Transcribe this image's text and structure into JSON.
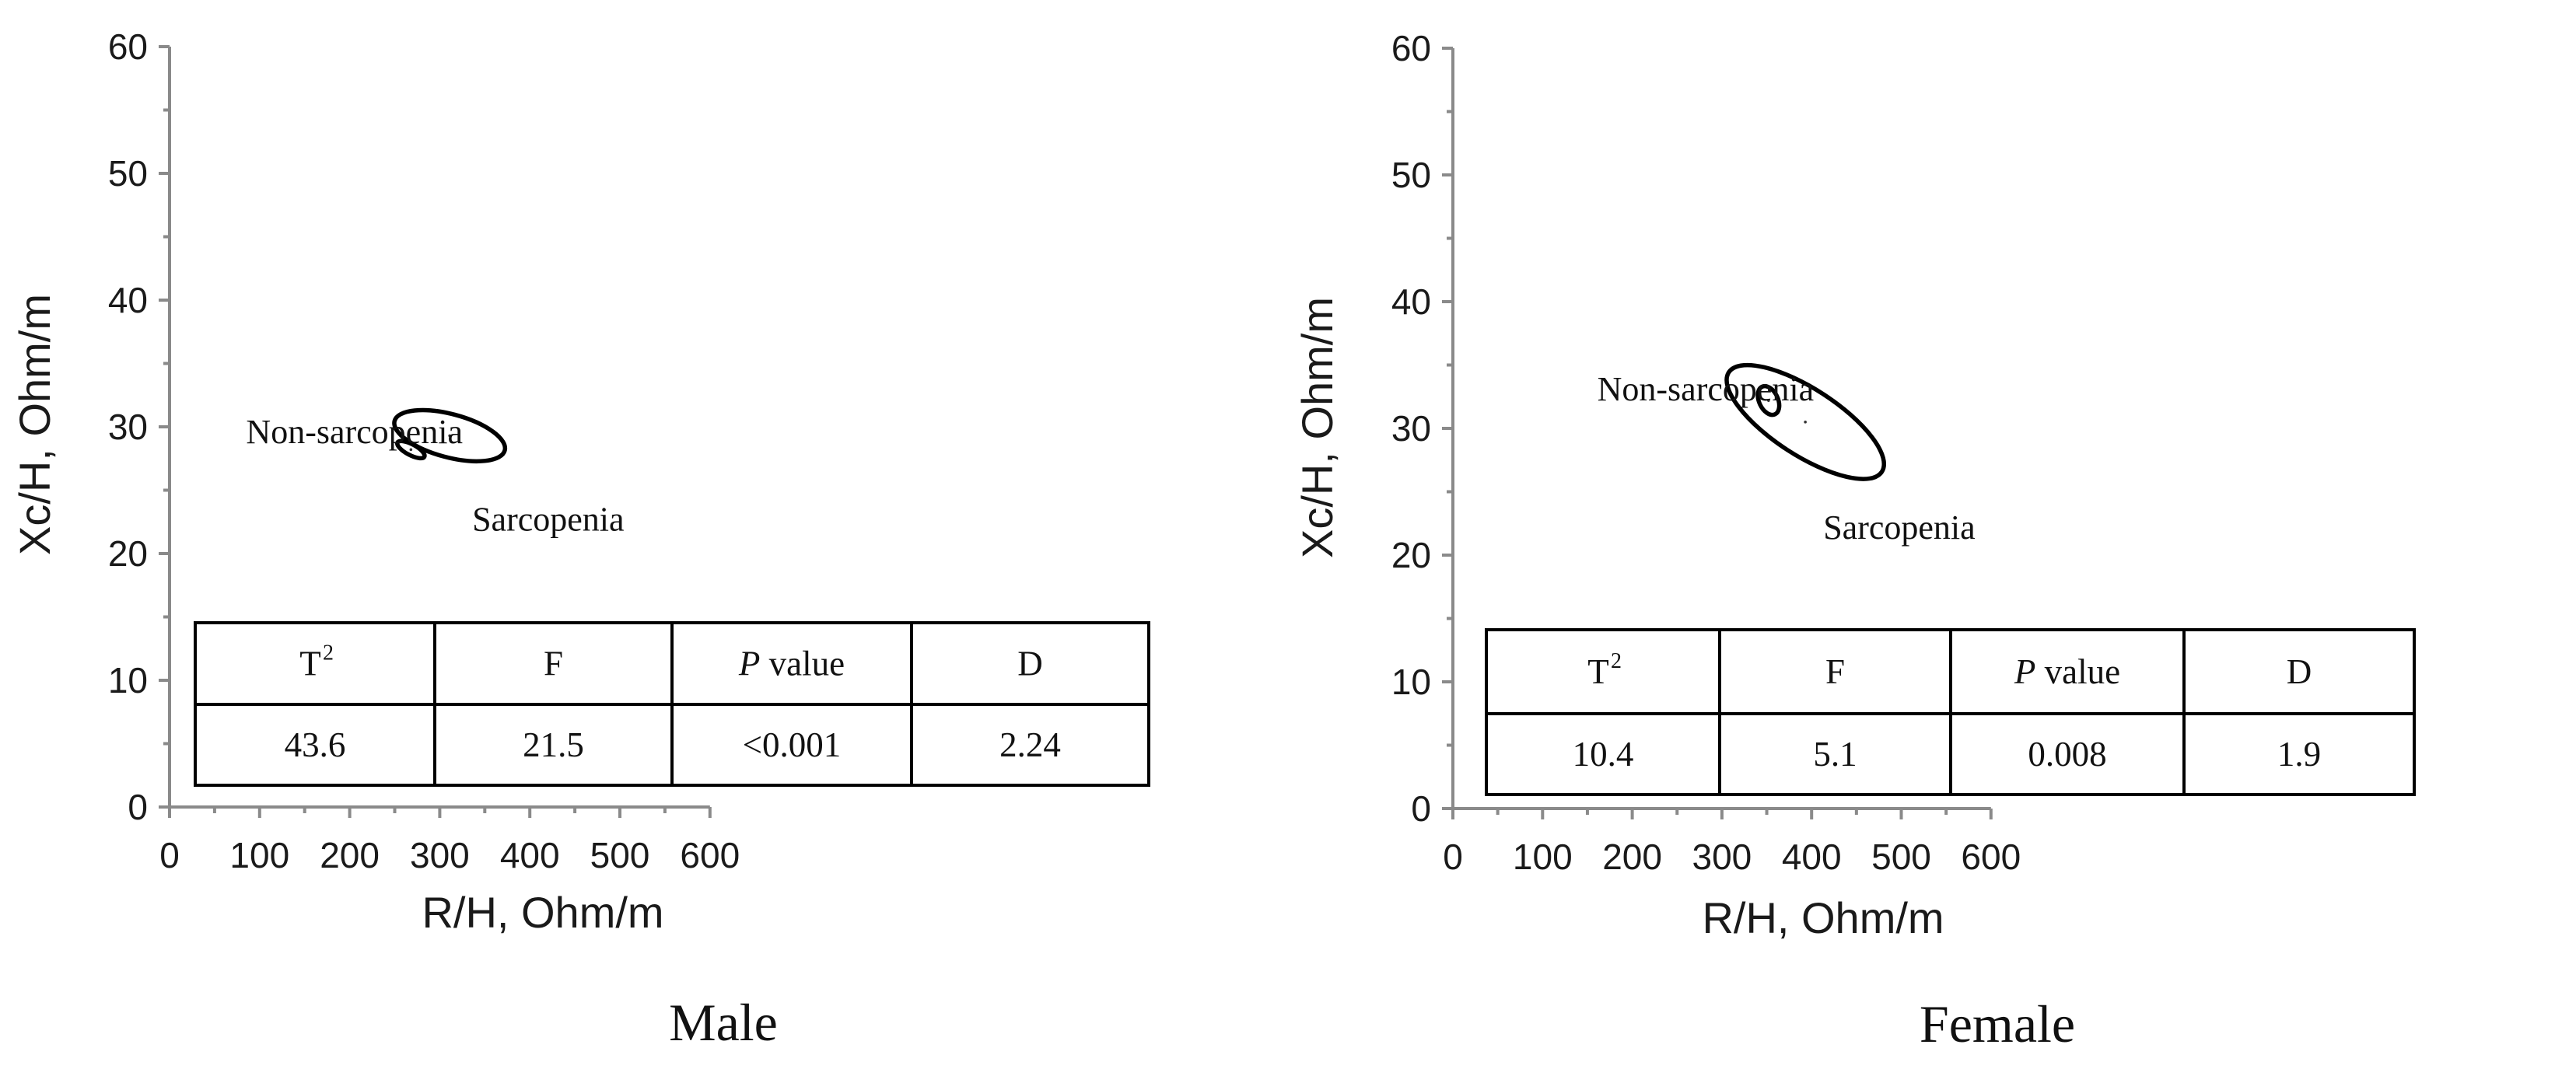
{
  "chart_data": [
    {
      "type": "scatter",
      "title": "Male",
      "xlabel": "R/H, Ohm/m",
      "ylabel": "Xc/H, Ohm/m",
      "xlim": [
        0,
        600
      ],
      "ylim": [
        0,
        60
      ],
      "x_ticks": [
        "0",
        "100",
        "200",
        "300",
        "400",
        "500",
        "600"
      ],
      "y_ticks": [
        "0",
        "10",
        "20",
        "30",
        "40",
        "50",
        "60"
      ],
      "ellipses": [
        {
          "name": "Non-sarcopenia",
          "cx": 268,
          "cy": 28.2,
          "rx": 6,
          "ry": 1.2,
          "angle_deg": 62
        },
        {
          "name": "Sarcopenia",
          "cx": 311,
          "cy": 29.3,
          "rx": 24,
          "ry": 4.5,
          "angle_deg": 75
        }
      ],
      "labels": [
        {
          "text": "Non-sarcopenia",
          "x": 85,
          "y": 28.7
        },
        {
          "text": "Sarcopenia",
          "x": 336,
          "y": 21.8
        }
      ],
      "table": {
        "headers": [
          "T",
          "F",
          "P value",
          "D"
        ],
        "header_sup": "2",
        "values": [
          "43.6",
          "21.5",
          "<0.001",
          "2.24"
        ]
      }
    },
    {
      "type": "scatter",
      "title": "Female",
      "xlabel": "R/H, Ohm/m",
      "ylabel": "Xc/H, Ohm/m",
      "xlim": [
        0,
        600
      ],
      "ylim": [
        0,
        60
      ],
      "x_ticks": [
        "0",
        "100",
        "200",
        "300",
        "400",
        "500",
        "600"
      ],
      "y_ticks": [
        "0",
        "10",
        "20",
        "30",
        "40",
        "50",
        "60"
      ],
      "ellipses": [
        {
          "name": "Non-sarcopenia",
          "cx": 352,
          "cy": 32.2,
          "rx": 10.5,
          "ry": 1.2,
          "angle_deg": 25
        },
        {
          "name": "Sarcopenia",
          "cx": 393,
          "cy": 30.5,
          "rx": 37,
          "ry": 7.2,
          "angle_deg": 57
        }
      ],
      "labels": [
        {
          "text": "Non-sarcopenia",
          "x": 161,
          "y": 32.2
        },
        {
          "text": "Sarcopenia",
          "x": 413,
          "y": 21.3
        }
      ],
      "table": {
        "headers": [
          "T",
          "F",
          "P value",
          "D"
        ],
        "header_sup": "2",
        "values": [
          "10.4",
          "5.1",
          "0.008",
          "1.9"
        ]
      }
    }
  ]
}
